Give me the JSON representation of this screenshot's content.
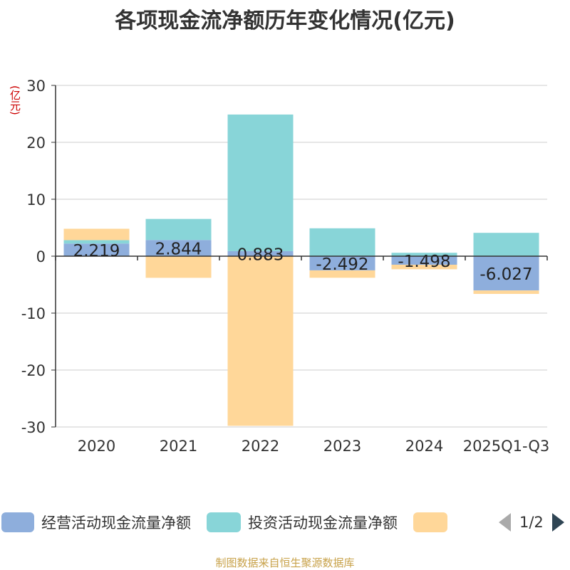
{
  "chart_data": {
    "type": "bar",
    "stacked": true,
    "title": "各项现金流净额历年变化情况(亿元)",
    "ylabel": "(亿元)",
    "xlabel": "",
    "categories": [
      "2020",
      "2021",
      "2022",
      "2023",
      "2024",
      "2025Q1-Q3"
    ],
    "ylim": [
      -30,
      30
    ],
    "yticks": [
      -30,
      -20,
      -10,
      0,
      10,
      20,
      30
    ],
    "grid": true,
    "series": [
      {
        "name": "经营活动现金流量净额",
        "color": "#8eaedc",
        "values": [
          2.219,
          2.844,
          0.883,
          -2.492,
          -1.498,
          -6.027
        ]
      },
      {
        "name": "投资活动现金流量净额",
        "color": "#88d5d8",
        "values": [
          0.6,
          3.7,
          24.0,
          4.9,
          0.6,
          4.1
        ]
      },
      {
        "name": "",
        "color": "#ffd799",
        "values": [
          2.0,
          -3.8,
          -29.8,
          -1.3,
          -0.8,
          -0.6
        ]
      }
    ],
    "data_labels": [
      "2.219",
      "2.844",
      "0.883",
      "-2.492",
      "-1.498",
      "-6.027"
    ],
    "legend_position": "bottom"
  },
  "legend": {
    "page": "1/2"
  },
  "footer": "制图数据来自恒生聚源数据库"
}
